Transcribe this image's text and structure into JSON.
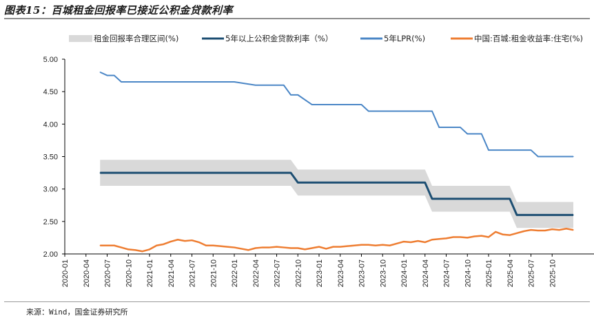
{
  "title": "图表15：百城租金回报率已接近公积金贷款利率",
  "source": "来源：Wind，国金证券研究所",
  "chart_data": {
    "type": "line",
    "y_ticks": [
      "5.00",
      "4.50",
      "4.00",
      "3.50",
      "3.00",
      "2.50",
      "2.00"
    ],
    "ylim": [
      2.0,
      5.0
    ],
    "x_ticks": [
      "2020-01",
      "2020-04",
      "2020-07",
      "2020-10",
      "2021-01",
      "2021-04",
      "2021-07",
      "2021-10",
      "2022-01",
      "2022-04",
      "2022-07",
      "2022-10",
      "2023-01",
      "2023-04",
      "2023-07",
      "2023-10",
      "2024-01",
      "2024-04",
      "2024-07",
      "2024-10",
      "2025-01",
      "2025-04",
      "2025-07",
      "2025-10"
    ],
    "band": {
      "name": "租金回报率合理区间(%)",
      "color": "#d9d9d9",
      "points": [
        {
          "x": "2020-06",
          "low": 3.05,
          "high": 3.45
        },
        {
          "x": "2022-09",
          "low": 3.05,
          "high": 3.45
        },
        {
          "x": "2022-10",
          "low": 2.9,
          "high": 3.3
        },
        {
          "x": "2024-04",
          "low": 2.9,
          "high": 3.3
        },
        {
          "x": "2024-05",
          "low": 2.65,
          "high": 3.05
        },
        {
          "x": "2025-04",
          "low": 2.65,
          "high": 3.05
        },
        {
          "x": "2025-05",
          "low": 2.4,
          "high": 2.8
        },
        {
          "x": "2026-01",
          "low": 2.4,
          "high": 2.8
        }
      ]
    },
    "series": [
      {
        "name": "5年以上公积金贷款利率（%）",
        "color": "#1c4e72",
        "width": 3,
        "points": [
          [
            "2020-06",
            3.25
          ],
          [
            "2022-09",
            3.25
          ],
          [
            "2022-10",
            3.1
          ],
          [
            "2024-04",
            3.1
          ],
          [
            "2024-05",
            2.85
          ],
          [
            "2025-04",
            2.85
          ],
          [
            "2025-05",
            2.6
          ],
          [
            "2026-01",
            2.6
          ]
        ]
      },
      {
        "name": "5年LPR(%)",
        "color": "#4a86c6",
        "width": 2,
        "points": [
          [
            "2020-06",
            4.8
          ],
          [
            "2020-07",
            4.75
          ],
          [
            "2020-08",
            4.75
          ],
          [
            "2020-09",
            4.65
          ],
          [
            "2021-12",
            4.65
          ],
          [
            "2022-01",
            4.65
          ],
          [
            "2022-04",
            4.6
          ],
          [
            "2022-08",
            4.6
          ],
          [
            "2022-09",
            4.45
          ],
          [
            "2022-10",
            4.45
          ],
          [
            "2022-12",
            4.3
          ],
          [
            "2023-07",
            4.3
          ],
          [
            "2023-08",
            4.2
          ],
          [
            "2024-05",
            4.2
          ],
          [
            "2024-06",
            3.95
          ],
          [
            "2024-09",
            3.95
          ],
          [
            "2024-10",
            3.85
          ],
          [
            "2024-12",
            3.85
          ],
          [
            "2025-01",
            3.6
          ],
          [
            "2025-07",
            3.6
          ],
          [
            "2025-08",
            3.5
          ],
          [
            "2026-01",
            3.5
          ]
        ]
      },
      {
        "name": "中国:百城:租金收益率:住宅(%)",
        "color": "#ee7d31",
        "width": 2.5,
        "points": [
          [
            "2020-06",
            2.13
          ],
          [
            "2020-07",
            2.13
          ],
          [
            "2020-08",
            2.13
          ],
          [
            "2020-09",
            2.1
          ],
          [
            "2020-10",
            2.07
          ],
          [
            "2020-11",
            2.06
          ],
          [
            "2020-12",
            2.04
          ],
          [
            "2021-01",
            2.07
          ],
          [
            "2021-02",
            2.13
          ],
          [
            "2021-03",
            2.15
          ],
          [
            "2021-04",
            2.19
          ],
          [
            "2021-05",
            2.22
          ],
          [
            "2021-06",
            2.2
          ],
          [
            "2021-07",
            2.21
          ],
          [
            "2021-08",
            2.18
          ],
          [
            "2021-09",
            2.13
          ],
          [
            "2021-10",
            2.13
          ],
          [
            "2021-11",
            2.12
          ],
          [
            "2021-12",
            2.11
          ],
          [
            "2022-01",
            2.1
          ],
          [
            "2022-02",
            2.08
          ],
          [
            "2022-03",
            2.06
          ],
          [
            "2022-04",
            2.09
          ],
          [
            "2022-05",
            2.1
          ],
          [
            "2022-06",
            2.1
          ],
          [
            "2022-07",
            2.11
          ],
          [
            "2022-08",
            2.1
          ],
          [
            "2022-09",
            2.09
          ],
          [
            "2022-10",
            2.09
          ],
          [
            "2022-11",
            2.07
          ],
          [
            "2022-12",
            2.09
          ],
          [
            "2023-01",
            2.11
          ],
          [
            "2023-02",
            2.08
          ],
          [
            "2023-03",
            2.11
          ],
          [
            "2023-04",
            2.11
          ],
          [
            "2023-05",
            2.12
          ],
          [
            "2023-06",
            2.13
          ],
          [
            "2023-07",
            2.14
          ],
          [
            "2023-08",
            2.14
          ],
          [
            "2023-09",
            2.13
          ],
          [
            "2023-10",
            2.14
          ],
          [
            "2023-11",
            2.13
          ],
          [
            "2023-12",
            2.16
          ],
          [
            "2024-01",
            2.19
          ],
          [
            "2024-02",
            2.18
          ],
          [
            "2024-03",
            2.2
          ],
          [
            "2024-04",
            2.18
          ],
          [
            "2024-05",
            2.22
          ],
          [
            "2024-06",
            2.23
          ],
          [
            "2024-07",
            2.24
          ],
          [
            "2024-08",
            2.26
          ],
          [
            "2024-09",
            2.26
          ],
          [
            "2024-10",
            2.25
          ],
          [
            "2024-11",
            2.27
          ],
          [
            "2024-12",
            2.28
          ],
          [
            "2025-01",
            2.26
          ],
          [
            "2025-02",
            2.34
          ],
          [
            "2025-03",
            2.3
          ],
          [
            "2025-04",
            2.29
          ],
          [
            "2025-05",
            2.32
          ],
          [
            "2025-06",
            2.35
          ],
          [
            "2025-07",
            2.37
          ],
          [
            "2025-08",
            2.36
          ],
          [
            "2025-09",
            2.36
          ],
          [
            "2025-10",
            2.38
          ],
          [
            "2025-11",
            2.37
          ],
          [
            "2025-12",
            2.39
          ],
          [
            "2026-01",
            2.37
          ]
        ]
      }
    ]
  }
}
